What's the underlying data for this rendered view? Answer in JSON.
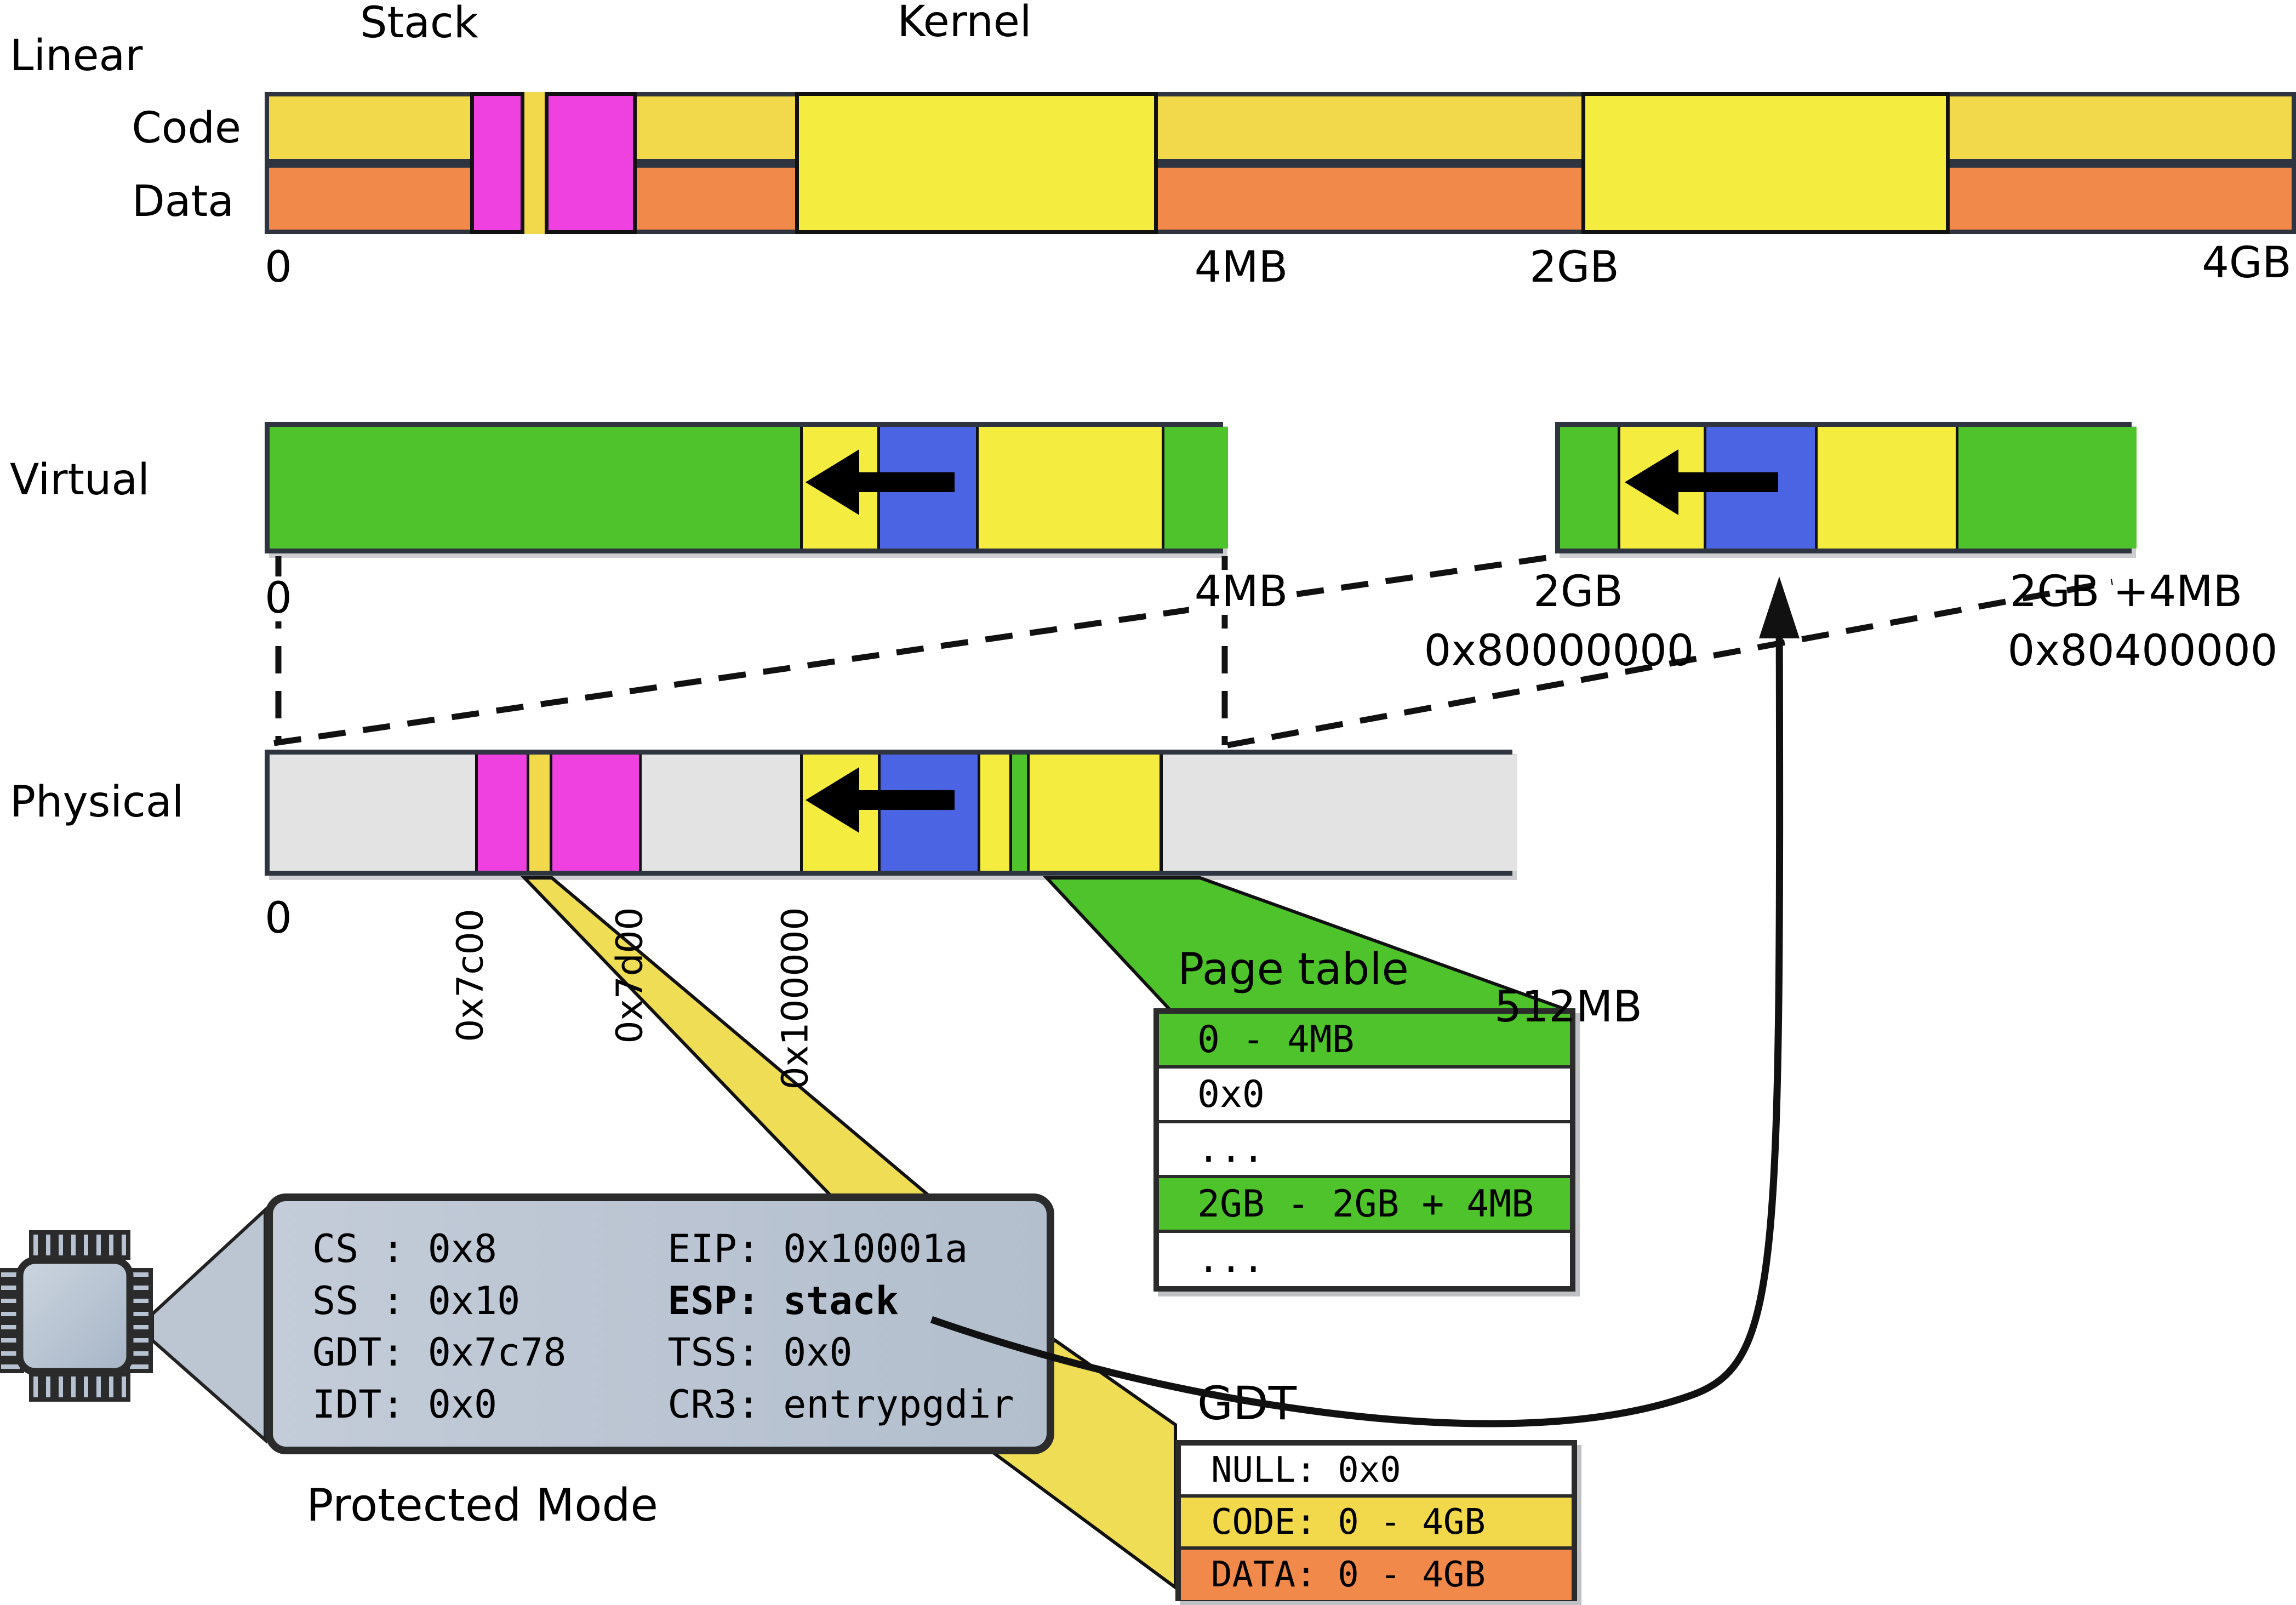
{
  "linear": {
    "label": "Linear",
    "code_label": "Code",
    "data_label": "Data",
    "stack_label": "Stack",
    "kernel_label": "Kernel",
    "ticks": [
      "0",
      "4MB",
      "2GB",
      "4GB"
    ]
  },
  "virtual": {
    "label": "Virtual",
    "ticks": {
      "zero": "0",
      "four_mb": "4MB",
      "two_gb": "2GB",
      "two_gb_hex": "0x80000000",
      "two_gb_plus": "2GB +4MB",
      "two_gb_plus_hex": "0x80400000"
    }
  },
  "physical": {
    "label": "Physical",
    "ticks": {
      "zero": "0",
      "boot_start": "0x7c00",
      "boot_end": "0x7d00",
      "kernel_load": "0x100000",
      "end": "512MB"
    }
  },
  "page_table": {
    "title": "Page table",
    "rows": [
      "0 - 4MB",
      "0x0",
      "...",
      "2GB - 2GB + 4MB",
      "..."
    ]
  },
  "cpu": {
    "left_rows": [
      "CS : 0x8",
      "SS : 0x10",
      "GDT: 0x7c78",
      "IDT: 0x0"
    ],
    "right_rows": [
      "EIP: 0x10001a",
      "ESP: stack",
      "TSS: 0x0",
      "CR3: entrypgdir"
    ],
    "mode_label": "Protected Mode"
  },
  "gdt": {
    "title": "GDT",
    "rows": [
      "NULL: 0x0",
      "CODE: 0 - 4GB",
      "DATA: 0 - 4GB"
    ]
  },
  "colors": {
    "gold": "#f2d94b",
    "yellow": "#f4ec3f",
    "ribbon_yellow": "#eedd55",
    "orange": "#f0894a",
    "magenta": "#ee41e0",
    "green": "#4fc32b",
    "blue": "#4b64e4",
    "free_gray": "#e3e3e3",
    "bar_border": "#2e3440",
    "box_border": "#2b2b2b",
    "cpu_fill": "#bdc7d4",
    "line_black": "#111111"
  }
}
